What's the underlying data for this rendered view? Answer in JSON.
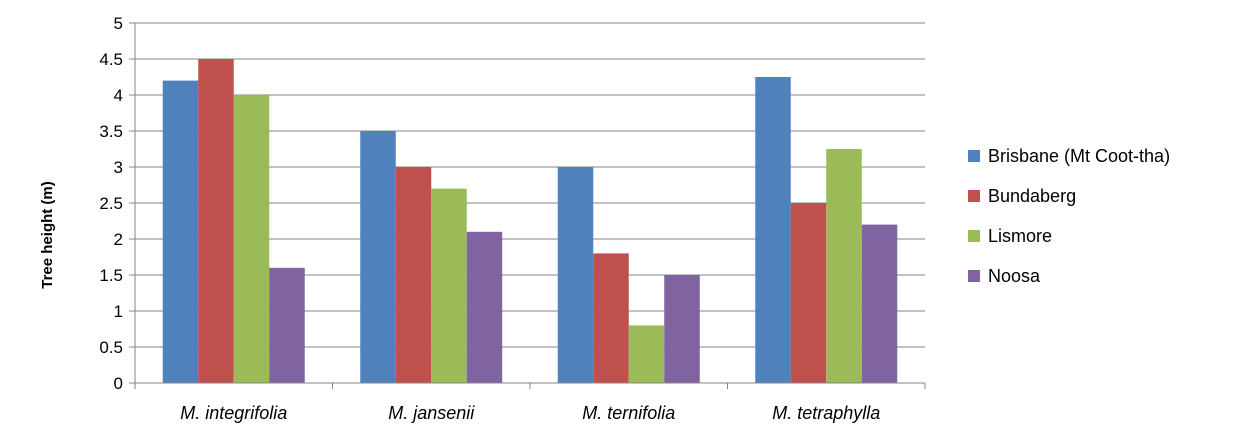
{
  "chart_data": {
    "type": "bar",
    "categories": [
      "M. integrifolia",
      "M. jansenii",
      "M. ternifolia",
      "M. tetraphylla"
    ],
    "series": [
      {
        "name": "Brisbane (Mt Coot-tha)",
        "color": "#4F81BD",
        "values": [
          4.2,
          3.5,
          3.0,
          4.25
        ]
      },
      {
        "name": "Bundaberg",
        "color": "#C0504D",
        "values": [
          4.5,
          3.0,
          1.8,
          2.5
        ]
      },
      {
        "name": "Lismore",
        "color": "#9BBB59",
        "values": [
          4.0,
          2.7,
          0.8,
          3.25
        ]
      },
      {
        "name": "Noosa",
        "color": "#8064A2",
        "values": [
          1.6,
          2.1,
          1.5,
          2.2
        ]
      }
    ],
    "ylabel": "Tree height (m)",
    "xlabel": "",
    "ylim": [
      0,
      5
    ],
    "yticks": [
      "0",
      "0.5",
      "1",
      "1.5",
      "2",
      "2.5",
      "3",
      "3.5",
      "4",
      "4.5",
      "5"
    ],
    "grid": true,
    "legend_position": "right"
  }
}
